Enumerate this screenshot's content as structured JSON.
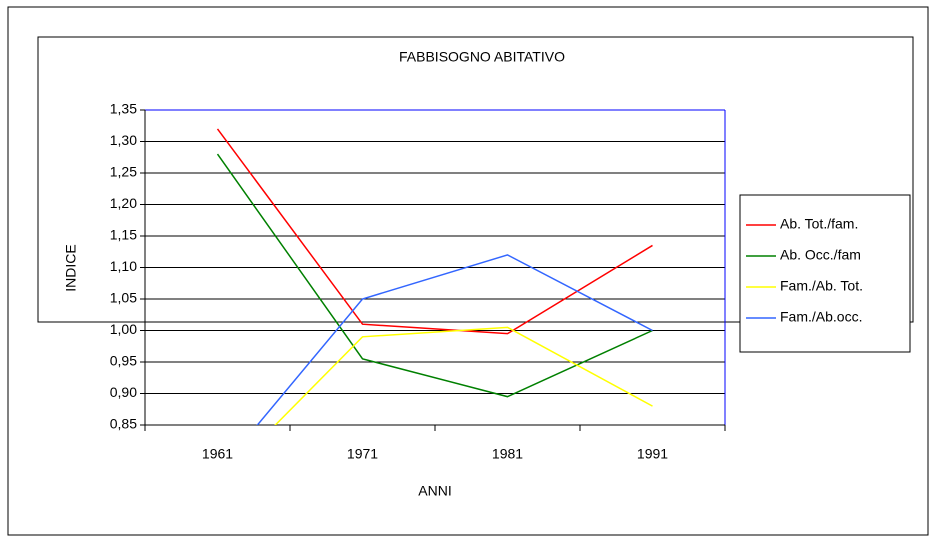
{
  "chart_data": {
    "type": "line",
    "title": "FABBISOGNO ABITATIVO",
    "x_label": "ANNI",
    "y_label": "INDICE",
    "categories": [
      "1961",
      "1971",
      "1981",
      "1991"
    ],
    "series": [
      {
        "name": "Ab. Tot./fam.",
        "color": "#ff0000",
        "values": [
          1.32,
          1.01,
          0.995,
          1.135
        ]
      },
      {
        "name": "Ab. Occ./fam",
        "color": "#008000",
        "values": [
          1.28,
          0.955,
          0.895,
          1.0
        ]
      },
      {
        "name": "Fam./Ab. Tot.",
        "color": "#ffff00",
        "values": [
          0.757,
          0.99,
          1.005,
          0.88
        ]
      },
      {
        "name": "Fam./Ab.occ.",
        "color": "#3366ff",
        "values": [
          0.774,
          1.05,
          1.12,
          1.0
        ]
      }
    ],
    "ylim": [
      0.85,
      1.35
    ],
    "yticks": [
      {
        "value": 0.85,
        "label": "0,85"
      },
      {
        "value": 0.9,
        "label": "0,90"
      },
      {
        "value": 0.95,
        "label": "0,95"
      },
      {
        "value": 1.0,
        "label": "1,00"
      },
      {
        "value": 1.05,
        "label": "1,05"
      },
      {
        "value": 1.1,
        "label": "1,10"
      },
      {
        "value": 1.15,
        "label": "1,15"
      },
      {
        "value": 1.2,
        "label": "1,20"
      },
      {
        "value": 1.25,
        "label": "1,25"
      },
      {
        "value": 1.3,
        "label": "1,30"
      },
      {
        "value": 1.35,
        "label": "1,35"
      }
    ],
    "grid": true,
    "legend": "right"
  }
}
